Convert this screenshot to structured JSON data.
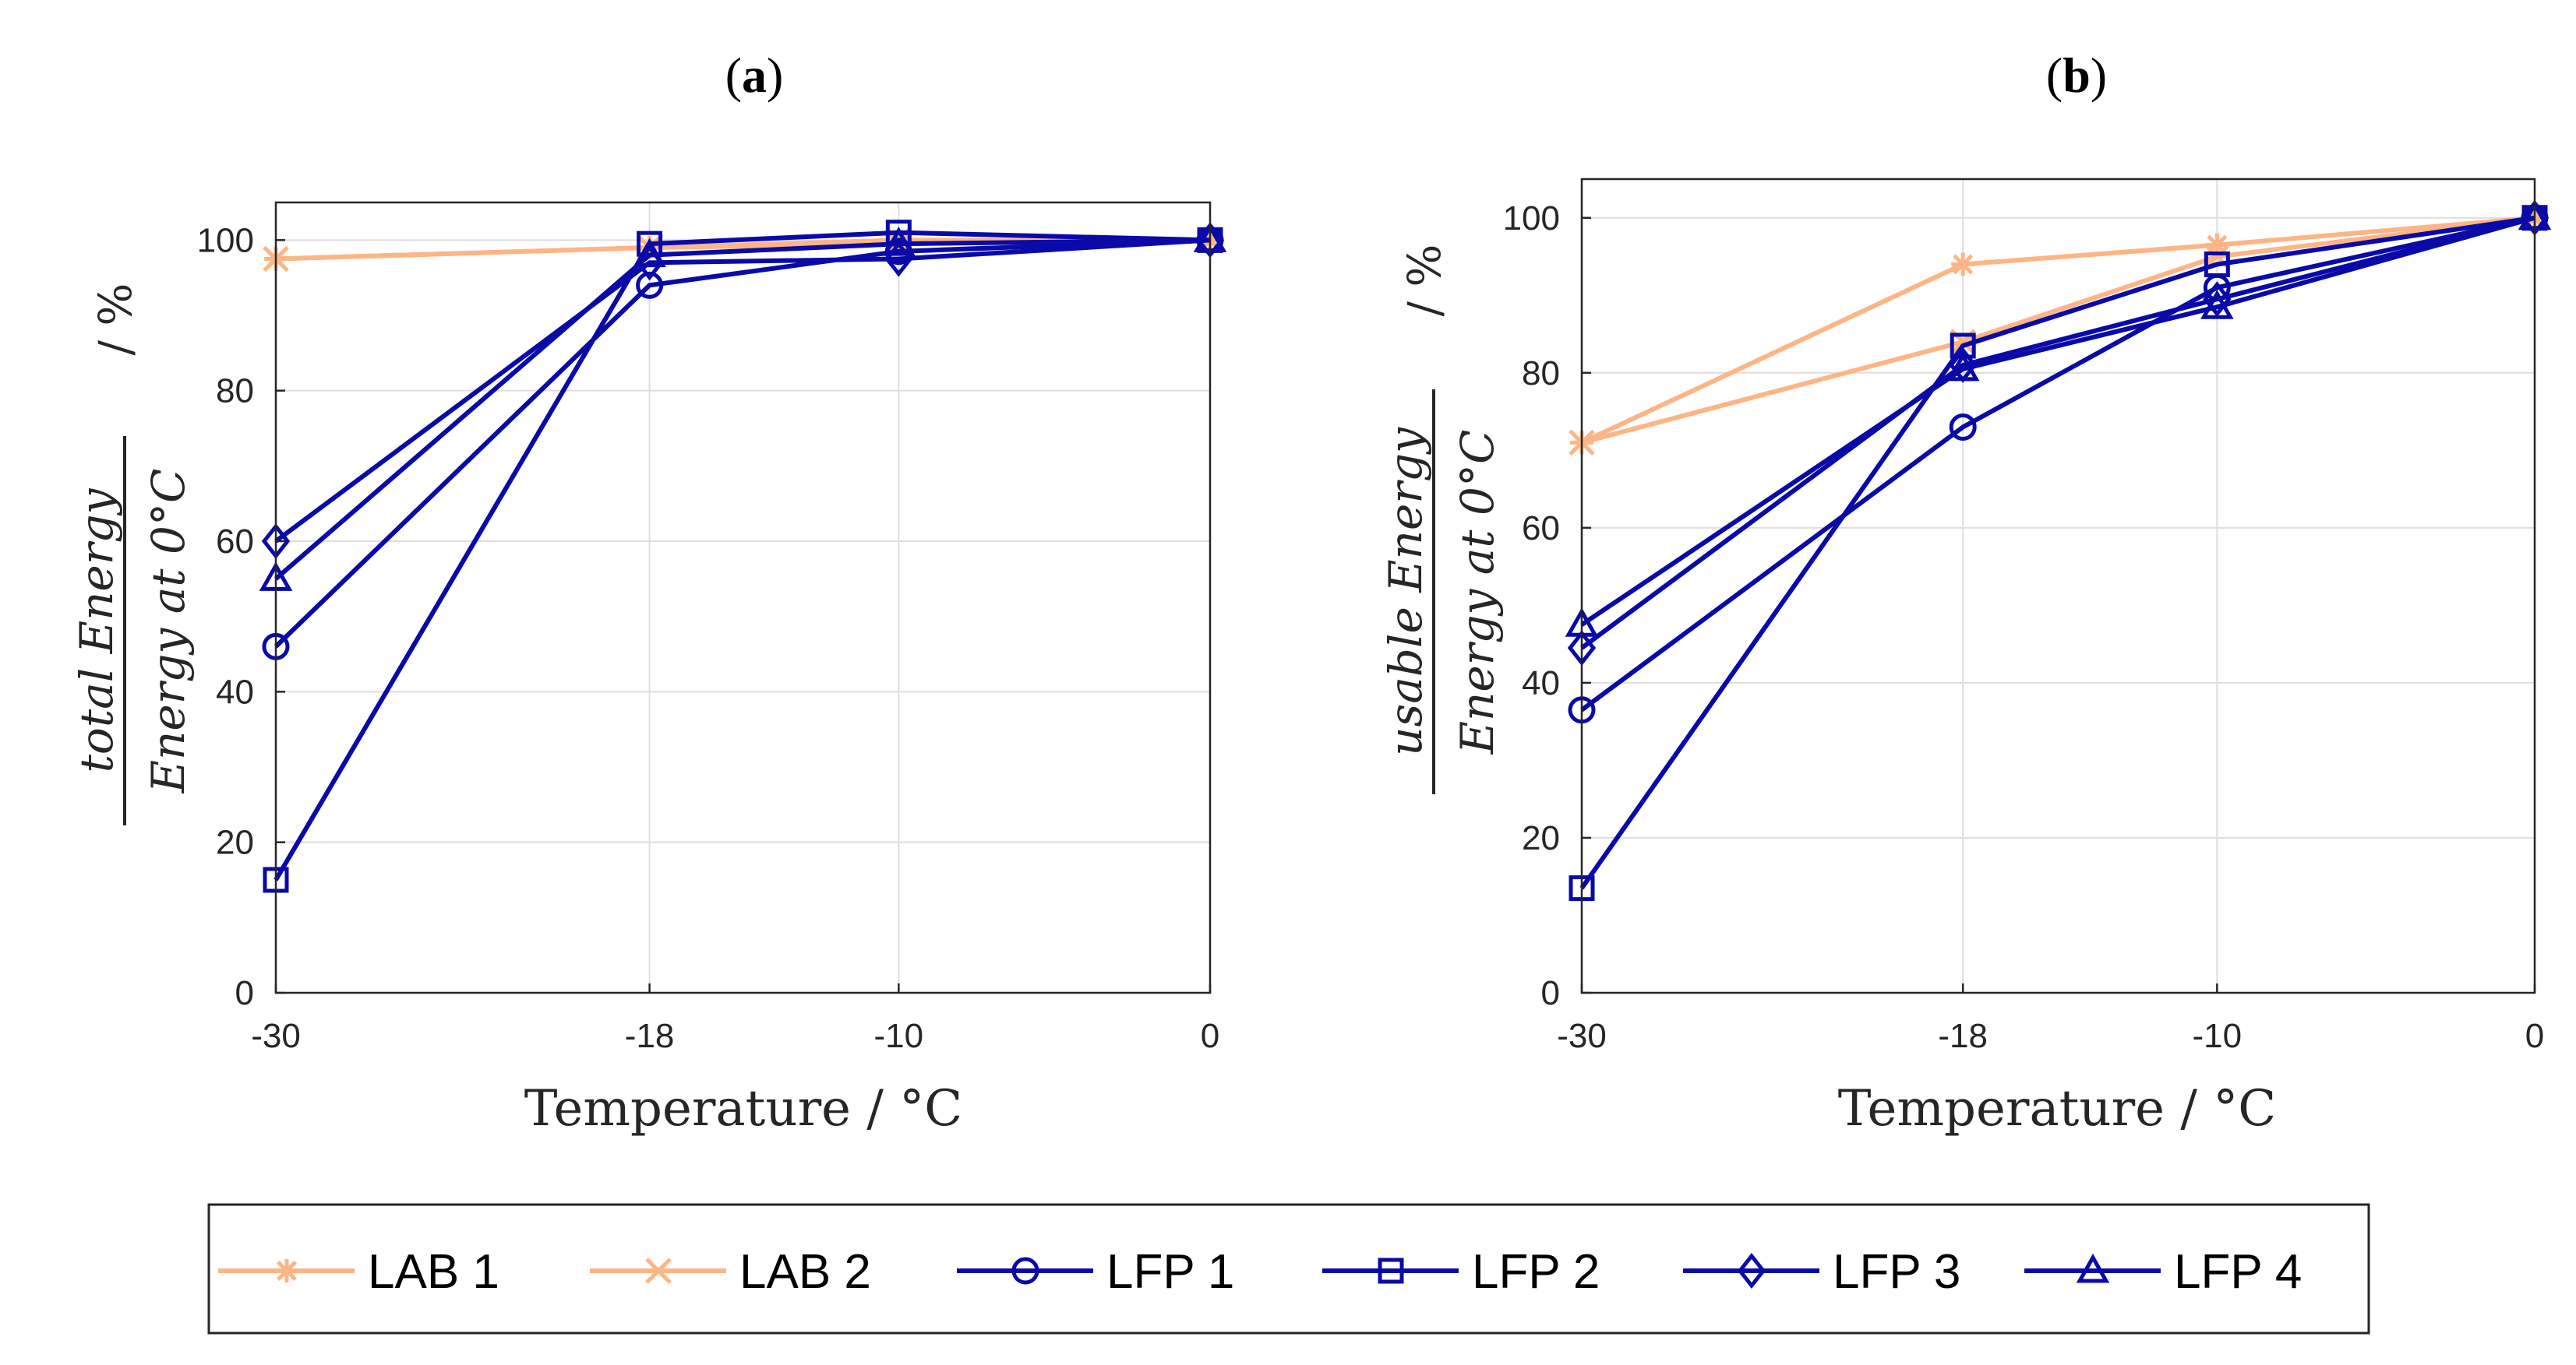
{
  "chart_data": [
    {
      "type": "line",
      "panel_label": "a",
      "xlabel": "Temperature / °C",
      "ylabel_numerator": "total Energy",
      "ylabel_denominator": "Energy at 0°C",
      "ylabel_unit": "/ %",
      "x": [
        -30,
        -18,
        -10,
        0
      ],
      "xlim": [
        -30,
        0
      ],
      "ylim": [
        0,
        105
      ],
      "xticks": [
        "-30",
        "-18",
        "-10",
        "0"
      ],
      "yticks": [
        "0",
        "20",
        "40",
        "60",
        "80",
        "100"
      ],
      "grid": true,
      "series": [
        {
          "name": "LAB 1",
          "values": [
            97.5,
            99,
            99.5,
            100
          ]
        },
        {
          "name": "LAB 2",
          "values": [
            97.5,
            99,
            100,
            100
          ]
        },
        {
          "name": "LFP 1",
          "values": [
            46,
            94,
            98.5,
            100
          ]
        },
        {
          "name": "LFP 2",
          "values": [
            15,
            99.5,
            101,
            100
          ]
        },
        {
          "name": "LFP 3",
          "values": [
            60,
            97,
            97.5,
            100
          ]
        },
        {
          "name": "LFP 4",
          "values": [
            55,
            98,
            99.5,
            100
          ]
        }
      ]
    },
    {
      "type": "line",
      "panel_label": "b",
      "xlabel": "Temperature / °C",
      "ylabel_numerator": "usable Energy",
      "ylabel_denominator": "Energy at 0°C",
      "ylabel_unit": "/ %",
      "x": [
        -30,
        -18,
        -10,
        0
      ],
      "xlim": [
        -30,
        0
      ],
      "ylim": [
        0,
        105
      ],
      "xticks": [
        "-30",
        "-18",
        "-10",
        "0"
      ],
      "yticks": [
        "0",
        "20",
        "40",
        "60",
        "80",
        "100"
      ],
      "grid": true,
      "series": [
        {
          "name": "LAB 1",
          "values": [
            71,
            94,
            96.5,
            100
          ]
        },
        {
          "name": "LAB 2",
          "values": [
            71,
            84,
            95,
            100
          ]
        },
        {
          "name": "LFP 1",
          "values": [
            36.5,
            73,
            91,
            100
          ]
        },
        {
          "name": "LFP 2",
          "values": [
            13.5,
            83.5,
            94,
            100
          ]
        },
        {
          "name": "LFP 3",
          "values": [
            44.5,
            81,
            89.5,
            100
          ]
        },
        {
          "name": "LFP 4",
          "values": [
            47.5,
            80.5,
            88.5,
            100
          ]
        }
      ]
    }
  ],
  "legend": [
    {
      "label": "LAB 1",
      "marker": "asterisk",
      "color": "#FDB585"
    },
    {
      "label": "LAB 2",
      "marker": "cross",
      "color": "#FDB585"
    },
    {
      "label": "LFP 1",
      "marker": "circle",
      "color": "#0A0AA8"
    },
    {
      "label": "LFP 2",
      "marker": "square",
      "color": "#0A0AA8"
    },
    {
      "label": "LFP 3",
      "marker": "diamond",
      "color": "#0A0AA8"
    },
    {
      "label": "LFP 4",
      "marker": "triangle",
      "color": "#0A0AA8"
    }
  ]
}
